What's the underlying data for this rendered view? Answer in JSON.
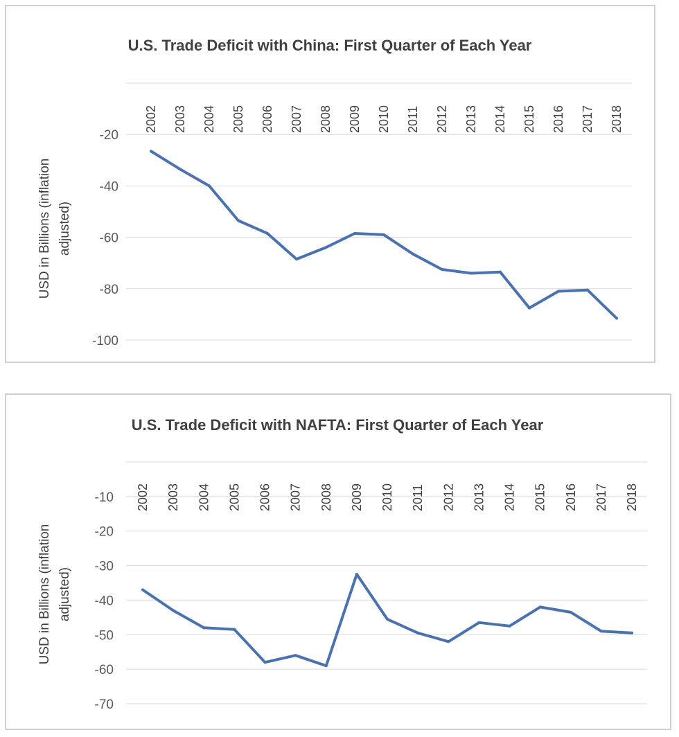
{
  "chart_data": [
    {
      "type": "line",
      "title": "U.S. Trade Deficit with China: First Quarter of Each Year",
      "ylabel": "USD in Billions (inflation adjusted)",
      "ylabel_lines": [
        "USD in Billions (inflation",
        "adjusted)"
      ],
      "xlabel": "",
      "categories": [
        "2002",
        "2003",
        "2004",
        "2005",
        "2006",
        "2007",
        "2008",
        "2009",
        "2010",
        "2011",
        "2012",
        "2013",
        "2014",
        "2015",
        "2016",
        "2017",
        "2018"
      ],
      "series": [
        {
          "name": "China",
          "color": "#4a72b0",
          "values": [
            -26.5,
            -33.5,
            -40,
            -53.5,
            -58.5,
            -68.5,
            -64,
            -58.5,
            -59,
            -66.5,
            -72.5,
            -74,
            -73.5,
            -87.5,
            -81,
            -80.5,
            -91.5
          ]
        }
      ],
      "yticks": [
        -20,
        -40,
        -60,
        -80,
        -100
      ],
      "ytick_labels": [
        "-20",
        "-40",
        "-60",
        "-80",
        "-100"
      ],
      "ylim": [
        -100,
        0
      ],
      "grid": true
    },
    {
      "type": "line",
      "title": "U.S. Trade Deficit with NAFTA: First Quarter of Each Year",
      "ylabel": "USD in Billions (inflation adjusted)",
      "ylabel_lines": [
        "USD in Billions (inflation",
        "adjusted)"
      ],
      "xlabel": "",
      "categories": [
        "2002",
        "2003",
        "2004",
        "2005",
        "2006",
        "2007",
        "2008",
        "2009",
        "2010",
        "2011",
        "2012",
        "2013",
        "2014",
        "2015",
        "2016",
        "2017",
        "2018"
      ],
      "series": [
        {
          "name": "NAFTA",
          "color": "#4a72b0",
          "values": [
            -37,
            -43,
            -48,
            -48.5,
            -58,
            -56,
            -59,
            -32.5,
            -45.5,
            -49.5,
            -52,
            -46.5,
            -47.5,
            -42,
            -43.5,
            -49,
            -49.5
          ]
        }
      ],
      "yticks": [
        -10,
        -20,
        -30,
        -40,
        -50,
        -60,
        -70
      ],
      "ytick_labels": [
        "-10",
        "-20",
        "-30",
        "-40",
        "-50",
        "-60",
        "-70"
      ],
      "ylim": [
        -70,
        0
      ],
      "grid": true
    }
  ]
}
